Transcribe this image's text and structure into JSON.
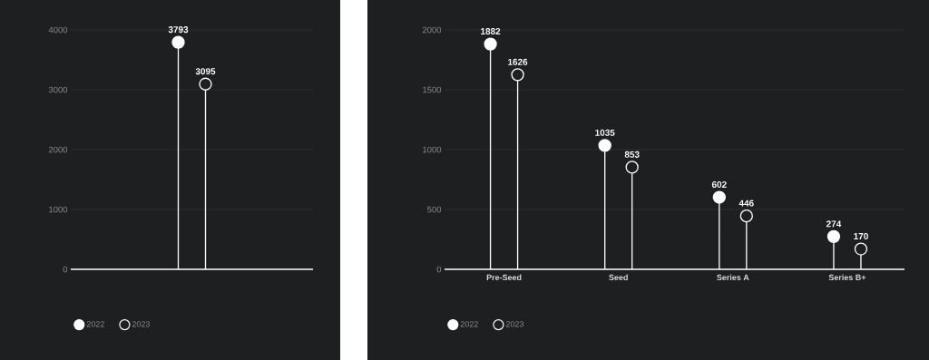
{
  "chart_data": [
    {
      "type": "lollipop",
      "categories": [
        null
      ],
      "series": [
        {
          "name": "2022",
          "color": "#ffffff",
          "values": [
            3793
          ]
        },
        {
          "name": "2023",
          "color": "#ffffff",
          "values": [
            3095
          ]
        }
      ],
      "ylim": [
        0,
        4000
      ],
      "yticks": [
        0,
        1000,
        2000,
        3000,
        4000
      ],
      "grid": "y",
      "legend": "bottom left",
      "marker": "circle",
      "data_labels": true
    },
    {
      "type": "lollipop",
      "categories": [
        "Pre-Seed",
        "Seed",
        "Series A",
        "Series B+"
      ],
      "series": [
        {
          "name": "2022",
          "color": "#ffffff",
          "values": [
            1882,
            1035,
            602,
            274
          ]
        },
        {
          "name": "2023",
          "color": "#ffffff",
          "values": [
            1626,
            853,
            446,
            170
          ]
        }
      ],
      "ylim": [
        0,
        2000
      ],
      "yticks": [
        0,
        500,
        1000,
        1500,
        2000
      ],
      "grid": "y",
      "legend": "bottom left",
      "marker": "circle",
      "data_labels": true
    }
  ]
}
